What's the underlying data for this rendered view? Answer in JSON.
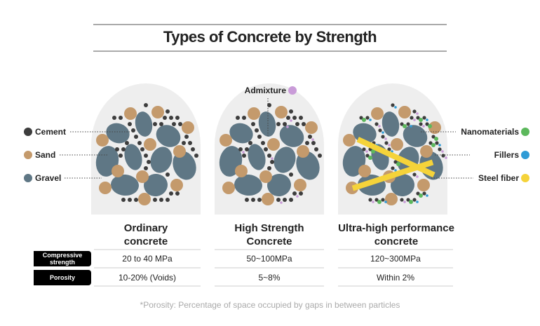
{
  "title": "Types of Concrete by Strength",
  "legend": {
    "left": [
      "Cement",
      "Sand",
      "Gravel"
    ],
    "top": [
      "Admixture"
    ],
    "right": [
      "Nanomaterials",
      "Fillers",
      "Steel fiber"
    ]
  },
  "table": {
    "columns": [
      "Ordinary concrete",
      "High Strength Concrete",
      "Ultra-high performance concrete"
    ],
    "rows": [
      {
        "label": "Compressive strength",
        "cells": [
          "20 to 40 MPa",
          "50~100MPa",
          "120~300MPa"
        ]
      },
      {
        "label": "Porosity",
        "cells": [
          "10-20% (Voids)",
          "5~8%",
          "Within 2%"
        ]
      }
    ]
  },
  "footnote": "*Porosity: Percentage of space occupied by gaps in between particles"
}
